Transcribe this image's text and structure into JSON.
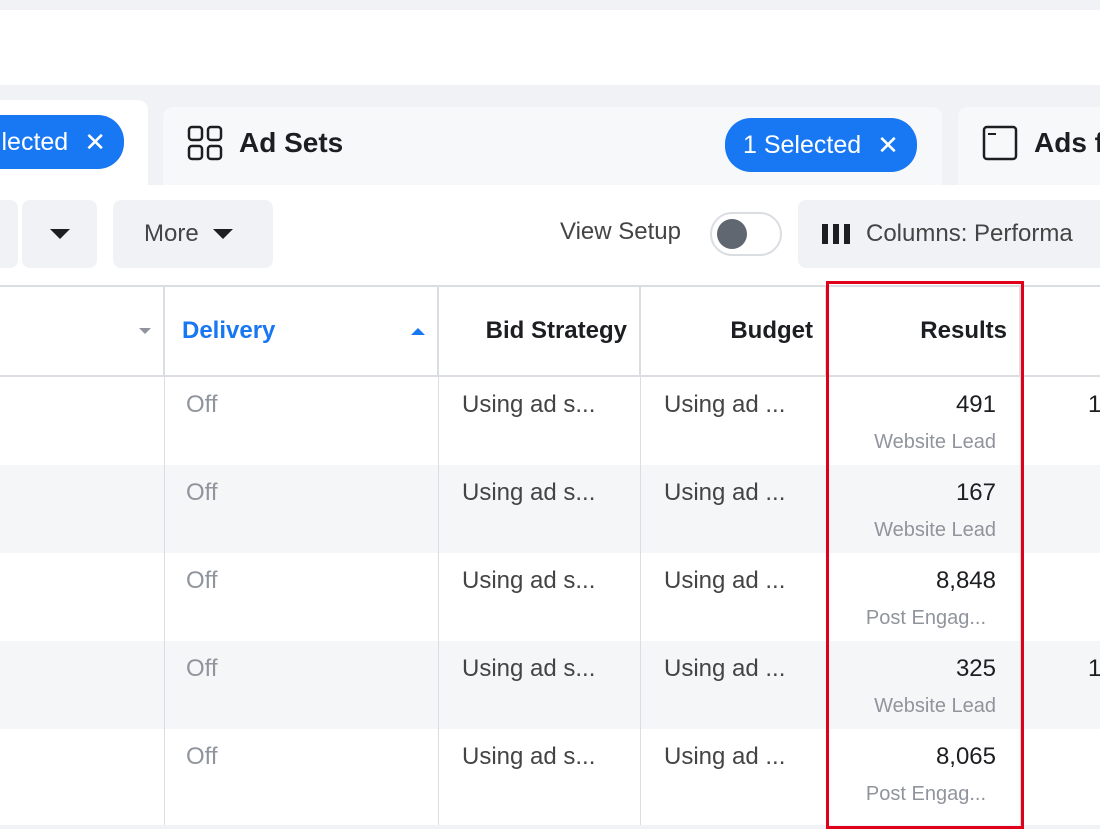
{
  "tabs": [
    {
      "label": "",
      "badge": "lected",
      "icon": "campaign-icon"
    },
    {
      "label": "Ad Sets",
      "badge": "1 Selected",
      "icon": "ad-sets-grid-icon"
    },
    {
      "label": "Ads f",
      "icon": "ads-window-icon"
    }
  ],
  "toolbar": {
    "more": "More",
    "view_setup": "View Setup",
    "view_setup_on": false,
    "columns": "Columns: Performa"
  },
  "table": {
    "headers": [
      "",
      "Delivery",
      "Bid Strategy",
      "Budget",
      "Results",
      ""
    ],
    "sort": {
      "column": "Delivery",
      "direction": "ascending"
    },
    "rows": [
      {
        "delivery": "Off",
        "bid": "Using ad s...",
        "budget": "Using ad ...",
        "results": "491",
        "result_type": "Website Lead",
        "next": "1"
      },
      {
        "delivery": "Off",
        "bid": "Using ad s...",
        "budget": "Using ad ...",
        "results": "167",
        "result_type": "Website Lead",
        "next": ""
      },
      {
        "delivery": "Off",
        "bid": "Using ad s...",
        "budget": "Using ad ...",
        "results": "8,848",
        "result_type": "Post Engag...",
        "next": ""
      },
      {
        "delivery": "Off",
        "bid": "Using ad s...",
        "budget": "Using ad ...",
        "results": "325",
        "result_type": "Website Lead",
        "next": "1"
      },
      {
        "delivery": "Off",
        "bid": "Using ad s...",
        "budget": "Using ad ...",
        "results": "8,065",
        "result_type": "Post Engag...",
        "next": ""
      }
    ]
  },
  "colors": {
    "accent": "#1877f2",
    "highlight": "#e0001b"
  }
}
